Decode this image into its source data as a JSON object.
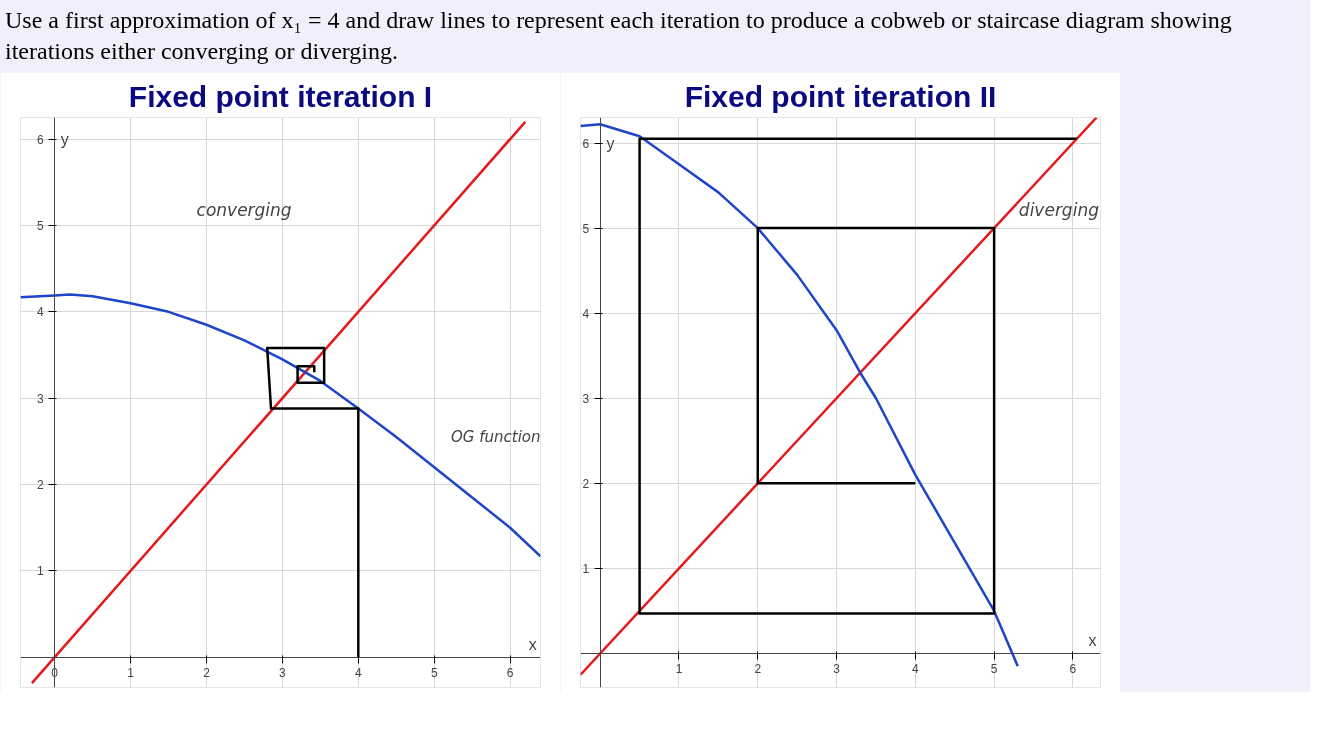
{
  "chart_data": [
    {
      "type": "line",
      "title": "Fixed point iteration I",
      "xlabel": "x",
      "ylabel": "y",
      "annotations": [
        "Use a first approximation of x₁ = 4 and draw lines to represent each iteration to produce a cobweb or staircase diagram showing iterations either converging or diverging.",
        "converging"
      ],
      "xlim": [
        -0.45,
        6.4
      ],
      "ylim": [
        -0.35,
        6.25
      ],
      "xticks": [
        0,
        1,
        2,
        3,
        4,
        5,
        6
      ],
      "yticks": [
        1,
        2,
        3,
        4,
        5,
        6
      ],
      "grid": true,
      "series": [
        {
          "color": "#e31a1c",
          "x": [
            -0.3,
            6.2
          ],
          "values": [
            -0.3,
            6.2
          ]
        },
        {
          "name": "OG function",
          "color": "#1f45c8",
          "x": [
            -0.45,
            0,
            0.2,
            0.5,
            1,
            1.5,
            2,
            2.5,
            3,
            3.5,
            4,
            4.5,
            5,
            5.5,
            6,
            6.4
          ],
          "values": [
            4.17,
            4.19,
            4.2,
            4.18,
            4.1,
            4.0,
            3.85,
            3.67,
            3.45,
            3.2,
            2.88,
            2.55,
            2.2,
            1.85,
            1.5,
            1.17
          ]
        },
        {
          "color": "#000000",
          "x": [
            4,
            4,
            2.85,
            2.8,
            3.55,
            3.55,
            3.2,
            3.2,
            3.42,
            3.42
          ],
          "values": [
            0,
            2.88,
            2.88,
            3.58,
            3.58,
            3.18,
            3.18,
            3.37,
            3.37,
            3.3
          ]
        }
      ]
    },
    {
      "type": "line",
      "title": "Fixed point iteration II",
      "xlabel": "x",
      "ylabel": "y",
      "annotations": [
        "diverging"
      ],
      "xlim": [
        -0.25,
        6.35
      ],
      "ylim": [
        -0.4,
        6.3
      ],
      "xticks": [
        1,
        2,
        3,
        4,
        5,
        6
      ],
      "yticks": [
        1,
        2,
        3,
        4,
        5,
        6
      ],
      "grid": true,
      "series": [
        {
          "color": "#e31a1c",
          "x": [
            -0.25,
            6.3
          ],
          "values": [
            -0.25,
            6.3
          ]
        },
        {
          "color": "#1f45c8",
          "x": [
            -0.25,
            0,
            0.5,
            1,
            1.5,
            2,
            2.5,
            3,
            3.3,
            3.5,
            4,
            4.5,
            5,
            5.3
          ],
          "values": [
            6.2,
            6.22,
            6.08,
            5.75,
            5.42,
            5.0,
            4.45,
            3.8,
            3.3,
            3.0,
            2.1,
            1.3,
            0.5,
            -0.15
          ]
        },
        {
          "color": "#000000",
          "x": [
            4,
            2,
            2,
            5,
            5,
            0.5,
            0.5,
            6.05
          ],
          "values": [
            2,
            2,
            5,
            5,
            0.47,
            0.47,
            6.05,
            6.05
          ]
        }
      ]
    }
  ]
}
